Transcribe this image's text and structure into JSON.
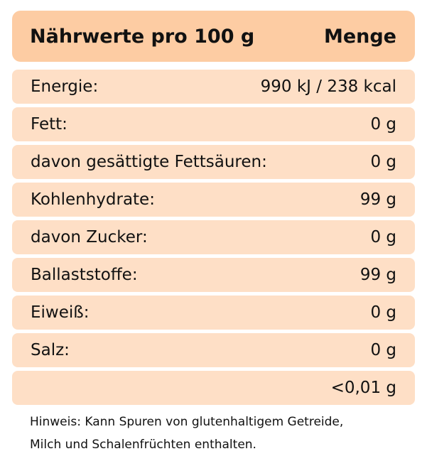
{
  "header": {
    "title": "Nährwerte pro 100 g",
    "amount": "Menge"
  },
  "rows": [
    {
      "label": "Energie:",
      "value": "990 kJ / 238 kcal"
    },
    {
      "label": "Fett:",
      "value": "0 g"
    },
    {
      "label": "davon gesättigte Fettsäuren:",
      "value": "0 g"
    },
    {
      "label": "Kohlenhydrate:",
      "value": "99 g"
    },
    {
      "label": "davon Zucker:",
      "value": "0 g"
    },
    {
      "label": "Ballaststoffe:",
      "value": "99 g"
    },
    {
      "label": "Eiweiß:",
      "value": "0 g"
    },
    {
      "label": "Salz:",
      "value": "0 g"
    },
    {
      "label": "",
      "value": "<0,01 g"
    }
  ],
  "note": {
    "line1": "Hinweis: Kann Spuren von glutenhaltigem Getreide,",
    "line2": "Milch und Schalenfrüchten enthalten."
  },
  "colors": {
    "header_bg": "#FDCCA3",
    "row_bg": "#FEDFC6"
  }
}
